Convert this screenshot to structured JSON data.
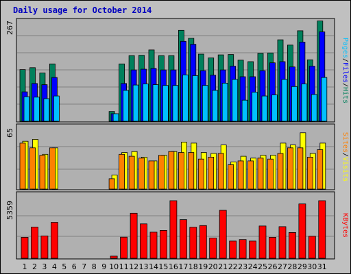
{
  "title": "Daily usage for October 2014",
  "colors": {
    "hits": "#00805c",
    "files": "#0000ff",
    "pages": "#00c0ff",
    "visits": "#ffff00",
    "sites": "#ff8000",
    "kbytes": "#ff0000",
    "weekend_tick": "#00805c",
    "separator": "#000000"
  },
  "chart_data": [
    {
      "type": "bar",
      "categories": [
        "1",
        "2",
        "3",
        "4",
        "5",
        "6",
        "7",
        "8",
        "9",
        "10",
        "11",
        "12",
        "13",
        "14",
        "15",
        "16",
        "17",
        "18",
        "19",
        "20",
        "21",
        "22",
        "23",
        "24",
        "25",
        "26",
        "27",
        "28",
        "29",
        "30",
        "31"
      ],
      "weekend_days": [
        "4",
        "5",
        "11",
        "12",
        "18",
        "19",
        "25",
        "26"
      ],
      "y_max_label": "267",
      "ylim": [
        0,
        267
      ],
      "right_label": [
        "Pages",
        "Files",
        "Hits"
      ],
      "series": [
        {
          "name": "Hits",
          "values": [
            137,
            142,
            128,
            152,
            0,
            0,
            0,
            0,
            0,
            26,
            152,
            174,
            175,
            189,
            174,
            174,
            241,
            220,
            178,
            168,
            176,
            177,
            162,
            158,
            180,
            181,
            216,
            202,
            240,
            163,
            266
          ]
        },
        {
          "name": "Files",
          "values": [
            78,
            100,
            97,
            116,
            0,
            0,
            0,
            0,
            0,
            20,
            100,
            136,
            138,
            140,
            136,
            136,
            212,
            204,
            134,
            122,
            136,
            146,
            118,
            118,
            134,
            155,
            158,
            144,
            210,
            146,
            237
          ]
        },
        {
          "name": "Pages",
          "values": [
            65,
            64,
            60,
            67,
            0,
            0,
            0,
            0,
            0,
            20,
            82,
            96,
            99,
            97,
            95,
            95,
            123,
            121,
            95,
            82,
            101,
            111,
            56,
            77,
            67,
            70,
            111,
            92,
            99,
            71,
            116
          ]
        }
      ]
    },
    {
      "type": "bar",
      "categories": [
        "1",
        "2",
        "3",
        "4",
        "5",
        "6",
        "7",
        "8",
        "9",
        "10",
        "11",
        "12",
        "13",
        "14",
        "15",
        "16",
        "17",
        "18",
        "19",
        "20",
        "21",
        "22",
        "23",
        "24",
        "25",
        "26",
        "27",
        "28",
        "29",
        "30",
        "31"
      ],
      "y_max_label": "65",
      "ylim": [
        0,
        65
      ],
      "right_label": [
        "Sites",
        "Visits"
      ],
      "series": [
        {
          "name": "Visits",
          "values": [
            51,
            53,
            37,
            44,
            0,
            0,
            0,
            0,
            0,
            15,
            39,
            40,
            34,
            30,
            36,
            40,
            50,
            49,
            39,
            38,
            47,
            29,
            35,
            33,
            36,
            36,
            49,
            47,
            60,
            38,
            49
          ]
        },
        {
          "name": "Sites",
          "values": [
            49,
            44,
            36,
            44,
            0,
            0,
            0,
            0,
            0,
            11,
            37,
            35,
            33,
            30,
            36,
            40,
            39,
            39,
            32,
            34,
            38,
            26,
            30,
            30,
            33,
            32,
            38,
            44,
            44,
            34,
            42
          ]
        }
      ]
    },
    {
      "type": "bar",
      "categories": [
        "1",
        "2",
        "3",
        "4",
        "5",
        "6",
        "7",
        "8",
        "9",
        "10",
        "11",
        "12",
        "13",
        "14",
        "15",
        "16",
        "17",
        "18",
        "19",
        "20",
        "21",
        "22",
        "23",
        "24",
        "25",
        "26",
        "27",
        "28",
        "29",
        "30",
        "31"
      ],
      "y_max_label": "5359",
      "ylim": [
        0,
        5359
      ],
      "right_label": [
        "KBytes"
      ],
      "series": [
        {
          "name": "KBytes",
          "values": [
            1952,
            2904,
            2080,
            3344,
            0,
            0,
            0,
            0,
            0,
            200,
            1968,
            4192,
            3200,
            2432,
            2592,
            5359,
            3600,
            2888,
            3040,
            1888,
            4464,
            1600,
            1744,
            1600,
            3008,
            1952,
            2944,
            2400,
            5056,
            2048,
            5359
          ]
        }
      ]
    }
  ]
}
